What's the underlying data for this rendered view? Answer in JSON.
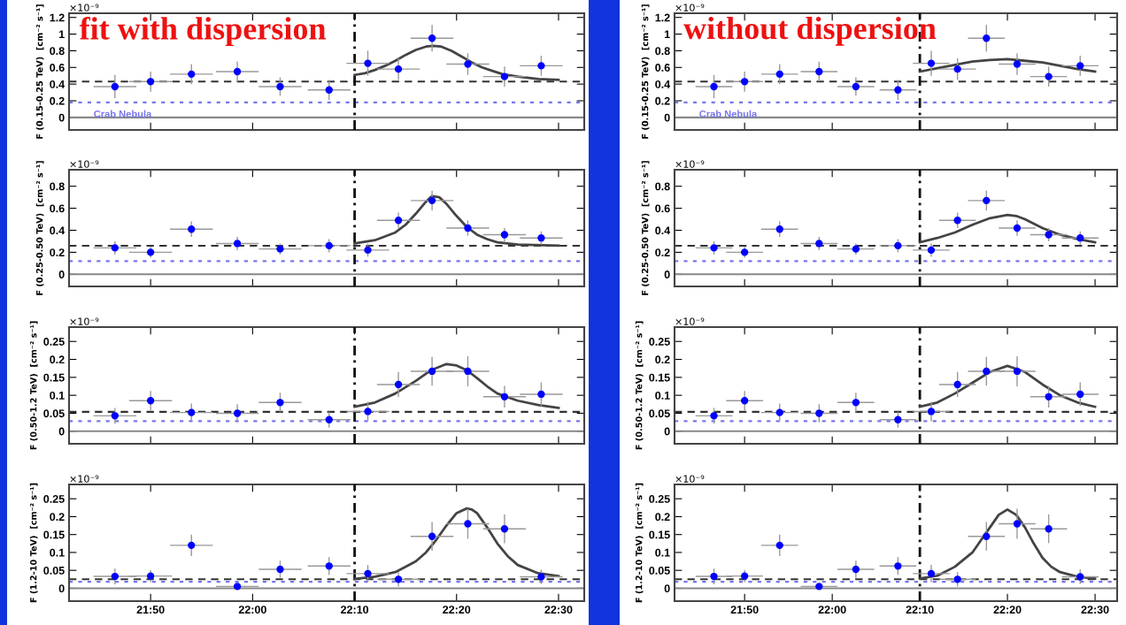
{
  "chart_data": [
    {
      "type": "scatter",
      "title": "fit with dispersion",
      "ylabel": "F (0.15-0.25 TeV)  [cm⁻² s⁻¹]",
      "annotations": [
        "×10⁻⁹"
      ],
      "xlim": [
        21.7,
        22.542
      ],
      "ylim": [
        -0.15,
        1.25
      ],
      "xticks": [
        {
          "value": 21.8333,
          "label": null
        },
        {
          "value": 22,
          "label": null
        },
        {
          "value": 22.1667,
          "label": null
        },
        {
          "value": 22.3333,
          "label": null
        },
        {
          "value": 22.5,
          "label": null
        }
      ],
      "yticks": [
        0,
        0.2,
        0.4,
        0.6,
        0.8,
        1,
        1.2
      ],
      "tick_labels": "y",
      "ref_lines": [
        {
          "axis": "y",
          "value": 0,
          "color": "#888888",
          "line_style": "solid"
        },
        {
          "axis": "y",
          "value": 0.43,
          "color": "#333333",
          "line_style": "dashed"
        },
        {
          "axis": "y",
          "value": 0.18,
          "color": "#7777ee",
          "line_style": "dotted",
          "label": "Crab Nebula"
        },
        {
          "axis": "x",
          "value": 22.1667,
          "color": "#111111",
          "line_style": "dashdot"
        }
      ],
      "series": [
        {
          "marker": "circle",
          "color": "#0000ff",
          "x": [
            21.775,
            21.8333,
            21.9,
            21.975,
            22.045,
            22.125,
            22.1883,
            22.2383,
            22.2933,
            22.3517,
            22.4117,
            22.4717
          ],
          "values": [
            0.37,
            0.43,
            0.52,
            0.55,
            0.37,
            0.33,
            0.65,
            0.58,
            0.95,
            0.64,
            0.49,
            0.62
          ],
          "errors": [
            0.14,
            0.12,
            0.12,
            0.12,
            0.11,
            0.12,
            0.15,
            0.13,
            0.16,
            0.13,
            0.12,
            0.12
          ],
          "xerrors": [
            0.035,
            0.035,
            0.035,
            0.035,
            0.035,
            0.035,
            0.035,
            0.035,
            0.035,
            0.035,
            0.035,
            0.035
          ]
        },
        {
          "type": "line",
          "color": "#444444",
          "x": [
            22.1667,
            22.1833,
            22.2,
            22.2167,
            22.2333,
            22.25,
            22.2667,
            22.2833,
            22.295,
            22.3083,
            22.325,
            22.3417,
            22.3583,
            22.375,
            22.3917,
            22.4083,
            22.4333,
            22.4667,
            22.5
          ],
          "values": [
            0.51,
            0.53,
            0.57,
            0.62,
            0.68,
            0.75,
            0.81,
            0.85,
            0.86,
            0.85,
            0.8,
            0.73,
            0.66,
            0.6,
            0.56,
            0.52,
            0.49,
            0.46,
            0.45
          ]
        }
      ]
    },
    {
      "type": "scatter",
      "ylabel": "F (0.25-0.50 TeV)  [cm⁻² s⁻¹]",
      "annotations": [
        "×10⁻⁹"
      ],
      "xlim": [
        21.7,
        22.542
      ],
      "ylim": [
        -0.11,
        0.95
      ],
      "xticks": [
        {
          "value": 21.8333,
          "label": null
        },
        {
          "value": 22,
          "label": null
        },
        {
          "value": 22.1667,
          "label": null
        },
        {
          "value": 22.3333,
          "label": null
        },
        {
          "value": 22.5,
          "label": null
        }
      ],
      "yticks": [
        0,
        0.2,
        0.4,
        0.6,
        0.8
      ],
      "tick_labels": "y",
      "ref_lines": [
        {
          "axis": "y",
          "value": 0,
          "color": "#888888",
          "line_style": "solid"
        },
        {
          "axis": "y",
          "value": 0.26,
          "color": "#333333",
          "line_style": "dashed"
        },
        {
          "axis": "y",
          "value": 0.12,
          "color": "#7777ee",
          "line_style": "dotted"
        },
        {
          "axis": "x",
          "value": 22.1667,
          "color": "#111111",
          "line_style": "dashdot"
        }
      ],
      "series": [
        {
          "marker": "circle",
          "color": "#0000ff",
          "x": [
            21.775,
            21.8333,
            21.9,
            21.975,
            22.045,
            22.125,
            22.1883,
            22.2383,
            22.2933,
            22.3517,
            22.4117,
            22.4717
          ],
          "values": [
            0.24,
            0.2,
            0.41,
            0.28,
            0.23,
            0.26,
            0.22,
            0.49,
            0.67,
            0.42,
            0.36,
            0.33
          ],
          "errors": [
            0.06,
            0.05,
            0.07,
            0.06,
            0.05,
            0.06,
            0.06,
            0.07,
            0.09,
            0.07,
            0.06,
            0.06
          ],
          "xerrors": [
            0.035,
            0.035,
            0.035,
            0.035,
            0.035,
            0.035,
            0.035,
            0.035,
            0.035,
            0.035,
            0.035,
            0.035
          ]
        },
        {
          "type": "line",
          "color": "#444444",
          "x": [
            22.1667,
            22.2,
            22.2333,
            22.25,
            22.2667,
            22.2833,
            22.2933,
            22.305,
            22.3167,
            22.3333,
            22.35,
            22.3667,
            22.3833,
            22.4,
            22.4333,
            22.5
          ],
          "values": [
            0.28,
            0.31,
            0.38,
            0.45,
            0.55,
            0.66,
            0.71,
            0.7,
            0.64,
            0.53,
            0.43,
            0.36,
            0.32,
            0.29,
            0.27,
            0.26
          ]
        }
      ]
    },
    {
      "type": "scatter",
      "ylabel": "F (0.50-1.2 TeV)  [cm⁻² s⁻¹]",
      "annotations": [
        "×10⁻⁹"
      ],
      "xlim": [
        21.7,
        22.542
      ],
      "ylim": [
        -0.035,
        0.29
      ],
      "xticks": [
        {
          "value": 21.8333,
          "label": null
        },
        {
          "value": 22,
          "label": null
        },
        {
          "value": 22.1667,
          "label": null
        },
        {
          "value": 22.3333,
          "label": null
        },
        {
          "value": 22.5,
          "label": null
        }
      ],
      "yticks": [
        0,
        0.05,
        0.1,
        0.15,
        0.2,
        0.25
      ],
      "tick_labels": "y",
      "ref_lines": [
        {
          "axis": "y",
          "value": 0,
          "color": "#888888",
          "line_style": "solid"
        },
        {
          "axis": "y",
          "value": 0.054,
          "color": "#333333",
          "line_style": "dashed"
        },
        {
          "axis": "y",
          "value": 0.028,
          "color": "#7777ee",
          "line_style": "dotted"
        },
        {
          "axis": "x",
          "value": 22.1667,
          "color": "#111111",
          "line_style": "dashdot"
        }
      ],
      "series": [
        {
          "marker": "circle",
          "color": "#0000ff",
          "x": [
            21.775,
            21.8333,
            21.9,
            21.975,
            22.045,
            22.125,
            22.1883,
            22.2383,
            22.2933,
            22.3517,
            22.4117,
            22.4717
          ],
          "values": [
            0.043,
            0.085,
            0.052,
            0.05,
            0.08,
            0.032,
            0.055,
            0.13,
            0.167,
            0.167,
            0.096,
            0.103
          ],
          "errors": [
            0.022,
            0.027,
            0.025,
            0.025,
            0.027,
            0.022,
            0.027,
            0.035,
            0.04,
            0.042,
            0.03,
            0.033
          ],
          "xerrors": [
            0.035,
            0.035,
            0.035,
            0.035,
            0.035,
            0.035,
            0.035,
            0.035,
            0.035,
            0.035,
            0.035,
            0.035
          ]
        },
        {
          "type": "line",
          "color": "#444444",
          "x": [
            22.1667,
            22.2,
            22.2333,
            22.2667,
            22.2917,
            22.3167,
            22.3333,
            22.35,
            22.3667,
            22.3833,
            22.4,
            22.4333,
            22.4667,
            22.5
          ],
          "values": [
            0.068,
            0.08,
            0.105,
            0.14,
            0.17,
            0.187,
            0.183,
            0.17,
            0.148,
            0.125,
            0.105,
            0.085,
            0.073,
            0.065
          ]
        }
      ]
    },
    {
      "type": "scatter",
      "ylabel": "F (1.2-10 TeV)  [cm⁻² s⁻¹]",
      "annotations": [
        "×10⁻⁹"
      ],
      "xlim": [
        21.7,
        22.542
      ],
      "ylim": [
        -0.036,
        0.29
      ],
      "xticks": [
        {
          "value": 21.8333,
          "label": "21:50"
        },
        {
          "value": 22,
          "label": "22:00"
        },
        {
          "value": 22.1667,
          "label": "22:10"
        },
        {
          "value": 22.3333,
          "label": "22:20"
        },
        {
          "value": 22.5,
          "label": "22:30"
        }
      ],
      "yticks": [
        0,
        0.05,
        0.1,
        0.15,
        0.2,
        0.25
      ],
      "ref_lines": [
        {
          "axis": "y",
          "value": 0,
          "color": "#888888",
          "line_style": "solid"
        },
        {
          "axis": "y",
          "value": 0.025,
          "color": "#333333",
          "line_style": "dashed"
        },
        {
          "axis": "y",
          "value": 0.018,
          "color": "#7777ee",
          "line_style": "dotted"
        },
        {
          "axis": "x",
          "value": 22.1667,
          "color": "#111111",
          "line_style": "dashdot"
        }
      ],
      "series": [
        {
          "marker": "circle",
          "color": "#0000ff",
          "x": [
            21.775,
            21.8333,
            21.9,
            21.975,
            22.045,
            22.125,
            22.1883,
            22.2383,
            22.2933,
            22.3517,
            22.4117,
            22.4717
          ],
          "values": [
            0.033,
            0.034,
            0.12,
            0.005,
            0.053,
            0.062,
            0.041,
            0.025,
            0.145,
            0.18,
            0.166,
            0.032
          ],
          "errors": [
            0.022,
            0.017,
            0.03,
            null,
            0.024,
            0.025,
            0.024,
            0.02,
            0.04,
            0.042,
            0.04,
            0.02
          ],
          "xerrors": [
            0.035,
            0.035,
            0.035,
            0.035,
            0.035,
            0.035,
            0.035,
            0.035,
            0.035,
            0.035,
            0.035,
            0.035
          ]
        },
        {
          "type": "line",
          "color": "#444444",
          "x": [
            22.1667,
            22.2,
            22.2333,
            22.2667,
            22.2833,
            22.3,
            22.3167,
            22.3333,
            22.35,
            22.3583,
            22.3667,
            22.3833,
            22.4,
            22.4167,
            22.4333,
            22.4667,
            22.5
          ],
          "values": [
            0.026,
            0.032,
            0.045,
            0.075,
            0.1,
            0.135,
            0.175,
            0.21,
            0.223,
            0.22,
            0.21,
            0.17,
            0.125,
            0.09,
            0.065,
            0.042,
            0.034
          ]
        }
      ]
    },
    {
      "type": "scatter",
      "title": "without dispersion",
      "ylabel": "F (0.15-0.25 TeV)  [cm⁻² s⁻¹]",
      "annotations": [
        "×10⁻⁹"
      ],
      "xlim": [
        21.7,
        22.542
      ],
      "ylim": [
        -0.15,
        1.25
      ],
      "xticks": [
        {
          "value": 21.8333,
          "label": null
        },
        {
          "value": 22,
          "label": null
        },
        {
          "value": 22.1667,
          "label": null
        },
        {
          "value": 22.3333,
          "label": null
        },
        {
          "value": 22.5,
          "label": null
        }
      ],
      "yticks": [
        0,
        0.2,
        0.4,
        0.6,
        0.8,
        1,
        1.2
      ],
      "tick_labels": "y",
      "ref_lines": [
        {
          "axis": "y",
          "value": 0,
          "color": "#888888",
          "line_style": "solid"
        },
        {
          "axis": "y",
          "value": 0.43,
          "color": "#333333",
          "line_style": "dashed"
        },
        {
          "axis": "y",
          "value": 0.18,
          "color": "#7777ee",
          "line_style": "dotted",
          "label": "Crab Nebula"
        },
        {
          "axis": "x",
          "value": 22.1667,
          "color": "#111111",
          "line_style": "dashdot"
        }
      ],
      "series": [
        {
          "marker": "circle",
          "color": "#0000ff",
          "x": [
            21.775,
            21.8333,
            21.9,
            21.975,
            22.045,
            22.125,
            22.1883,
            22.2383,
            22.2933,
            22.3517,
            22.4117,
            22.4717
          ],
          "values": [
            0.37,
            0.43,
            0.52,
            0.55,
            0.37,
            0.33,
            0.65,
            0.58,
            0.95,
            0.64,
            0.49,
            0.62
          ],
          "errors": [
            0.14,
            0.12,
            0.12,
            0.12,
            0.11,
            0.12,
            0.15,
            0.13,
            0.16,
            0.13,
            0.12,
            0.12
          ],
          "xerrors": [
            0.035,
            0.035,
            0.035,
            0.035,
            0.035,
            0.035,
            0.035,
            0.035,
            0.035,
            0.035,
            0.035,
            0.035
          ]
        },
        {
          "type": "line",
          "color": "#444444",
          "x": [
            22.1667,
            22.2,
            22.2333,
            22.2667,
            22.3,
            22.3333,
            22.3667,
            22.4,
            22.4333,
            22.4667,
            22.5
          ],
          "values": [
            0.55,
            0.59,
            0.63,
            0.67,
            0.69,
            0.7,
            0.68,
            0.66,
            0.62,
            0.58,
            0.55
          ]
        }
      ]
    },
    {
      "type": "scatter",
      "ylabel": "F (0.25-0.50 TeV)  [cm⁻² s⁻¹]",
      "annotations": [
        "×10⁻⁹"
      ],
      "xlim": [
        21.7,
        22.542
      ],
      "ylim": [
        -0.11,
        0.95
      ],
      "xticks": [
        {
          "value": 21.8333,
          "label": null
        },
        {
          "value": 22,
          "label": null
        },
        {
          "value": 22.1667,
          "label": null
        },
        {
          "value": 22.3333,
          "label": null
        },
        {
          "value": 22.5,
          "label": null
        }
      ],
      "yticks": [
        0,
        0.2,
        0.4,
        0.6,
        0.8
      ],
      "tick_labels": "y",
      "ref_lines": [
        {
          "axis": "y",
          "value": 0,
          "color": "#888888",
          "line_style": "solid"
        },
        {
          "axis": "y",
          "value": 0.26,
          "color": "#333333",
          "line_style": "dashed"
        },
        {
          "axis": "y",
          "value": 0.12,
          "color": "#7777ee",
          "line_style": "dotted"
        },
        {
          "axis": "x",
          "value": 22.1667,
          "color": "#111111",
          "line_style": "dashdot"
        }
      ],
      "series": [
        {
          "marker": "circle",
          "color": "#0000ff",
          "x": [
            21.775,
            21.8333,
            21.9,
            21.975,
            22.045,
            22.125,
            22.1883,
            22.2383,
            22.2933,
            22.3517,
            22.4117,
            22.4717
          ],
          "values": [
            0.24,
            0.2,
            0.41,
            0.28,
            0.23,
            0.26,
            0.22,
            0.49,
            0.67,
            0.42,
            0.36,
            0.33
          ],
          "errors": [
            0.06,
            0.05,
            0.07,
            0.06,
            0.05,
            0.06,
            0.06,
            0.07,
            0.09,
            0.07,
            0.06,
            0.06
          ],
          "xerrors": [
            0.035,
            0.035,
            0.035,
            0.035,
            0.035,
            0.035,
            0.035,
            0.035,
            0.035,
            0.035,
            0.035,
            0.035
          ]
        },
        {
          "type": "line",
          "color": "#444444",
          "x": [
            22.1667,
            22.2,
            22.2333,
            22.2667,
            22.3,
            22.3333,
            22.35,
            22.3667,
            22.4,
            22.4333,
            22.4667,
            22.5
          ],
          "values": [
            0.29,
            0.33,
            0.38,
            0.45,
            0.51,
            0.54,
            0.53,
            0.5,
            0.42,
            0.36,
            0.32,
            0.29
          ]
        }
      ]
    },
    {
      "type": "scatter",
      "ylabel": "F (0.50-1.2 TeV)  [cm⁻² s⁻¹]",
      "annotations": [
        "×10⁻⁹"
      ],
      "xlim": [
        21.7,
        22.542
      ],
      "ylim": [
        -0.035,
        0.29
      ],
      "xticks": [
        {
          "value": 21.8333,
          "label": null
        },
        {
          "value": 22,
          "label": null
        },
        {
          "value": 22.1667,
          "label": null
        },
        {
          "value": 22.3333,
          "label": null
        },
        {
          "value": 22.5,
          "label": null
        }
      ],
      "yticks": [
        0,
        0.05,
        0.1,
        0.15,
        0.2,
        0.25
      ],
      "tick_labels": "y",
      "ref_lines": [
        {
          "axis": "y",
          "value": 0,
          "color": "#888888",
          "line_style": "solid"
        },
        {
          "axis": "y",
          "value": 0.054,
          "color": "#333333",
          "line_style": "dashed"
        },
        {
          "axis": "y",
          "value": 0.028,
          "color": "#7777ee",
          "line_style": "dotted"
        },
        {
          "axis": "x",
          "value": 22.1667,
          "color": "#111111",
          "line_style": "dashdot"
        }
      ],
      "series": [
        {
          "marker": "circle",
          "color": "#0000ff",
          "x": [
            21.775,
            21.8333,
            21.9,
            21.975,
            22.045,
            22.125,
            22.1883,
            22.2383,
            22.2933,
            22.3517,
            22.4117,
            22.4717
          ],
          "values": [
            0.043,
            0.085,
            0.052,
            0.05,
            0.08,
            0.032,
            0.055,
            0.13,
            0.167,
            0.167,
            0.096,
            0.103
          ],
          "errors": [
            0.022,
            0.027,
            0.025,
            0.025,
            0.027,
            0.022,
            0.027,
            0.035,
            0.04,
            0.042,
            0.03,
            0.033
          ],
          "xerrors": [
            0.035,
            0.035,
            0.035,
            0.035,
            0.035,
            0.035,
            0.035,
            0.035,
            0.035,
            0.035,
            0.035,
            0.035
          ]
        },
        {
          "type": "line",
          "color": "#444444",
          "x": [
            22.1667,
            22.2,
            22.2333,
            22.2667,
            22.3,
            22.3333,
            22.3667,
            22.4,
            22.4333,
            22.4667,
            22.5
          ],
          "values": [
            0.068,
            0.08,
            0.105,
            0.135,
            0.165,
            0.182,
            0.165,
            0.13,
            0.1,
            0.08,
            0.068
          ]
        }
      ]
    },
    {
      "type": "scatter",
      "ylabel": "F (1.2-10 TeV)  [cm⁻² s⁻¹]",
      "annotations": [
        "×10⁻⁹"
      ],
      "xlim": [
        21.7,
        22.542
      ],
      "ylim": [
        -0.036,
        0.29
      ],
      "xticks": [
        {
          "value": 21.8333,
          "label": "21:50"
        },
        {
          "value": 22,
          "label": "22:00"
        },
        {
          "value": 22.1667,
          "label": "22:10"
        },
        {
          "value": 22.3333,
          "label": "22:20"
        },
        {
          "value": 22.5,
          "label": "22:30"
        }
      ],
      "yticks": [
        0,
        0.05,
        0.1,
        0.15,
        0.2,
        0.25
      ],
      "ref_lines": [
        {
          "axis": "y",
          "value": 0,
          "color": "#888888",
          "line_style": "solid"
        },
        {
          "axis": "y",
          "value": 0.025,
          "color": "#333333",
          "line_style": "dashed"
        },
        {
          "axis": "y",
          "value": 0.018,
          "color": "#7777ee",
          "line_style": "dotted"
        },
        {
          "axis": "x",
          "value": 22.1667,
          "color": "#111111",
          "line_style": "dashdot"
        }
      ],
      "series": [
        {
          "marker": "circle",
          "color": "#0000ff",
          "x": [
            21.775,
            21.8333,
            21.9,
            21.975,
            22.045,
            22.125,
            22.1883,
            22.2383,
            22.2933,
            22.3517,
            22.4117,
            22.4717
          ],
          "values": [
            0.033,
            0.034,
            0.12,
            0.005,
            0.053,
            0.062,
            0.041,
            0.025,
            0.145,
            0.18,
            0.166,
            0.032
          ],
          "errors": [
            0.022,
            0.017,
            0.03,
            null,
            0.024,
            0.025,
            0.024,
            0.02,
            0.04,
            0.042,
            0.04,
            0.02
          ],
          "xerrors": [
            0.035,
            0.035,
            0.035,
            0.035,
            0.035,
            0.035,
            0.035,
            0.035,
            0.035,
            0.035,
            0.035,
            0.035
          ]
        },
        {
          "type": "line",
          "color": "#444444",
          "x": [
            22.1667,
            22.2,
            22.2333,
            22.2667,
            22.2833,
            22.3,
            22.3167,
            22.3333,
            22.35,
            22.3667,
            22.3833,
            22.4,
            22.4167,
            22.4333,
            22.4667,
            22.5
          ],
          "values": [
            0.027,
            0.035,
            0.06,
            0.1,
            0.135,
            0.17,
            0.205,
            0.22,
            0.205,
            0.17,
            0.125,
            0.085,
            0.06,
            0.045,
            0.032,
            0.027
          ]
        }
      ]
    }
  ]
}
